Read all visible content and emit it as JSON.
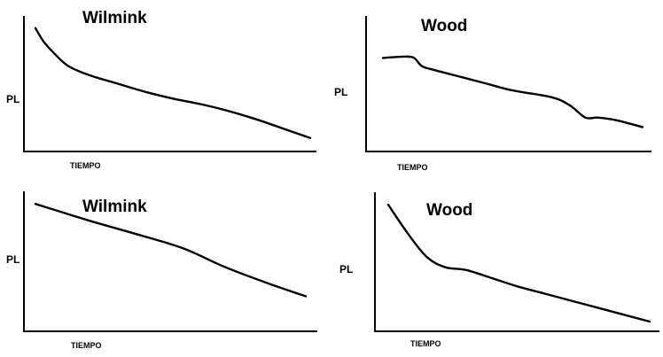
{
  "chart_data": [
    {
      "type": "line",
      "title": "Wilmink",
      "xlabel": "TIEMPO",
      "ylabel": "PL",
      "xlim": [
        0,
        10
      ],
      "ylim": [
        0,
        10
      ],
      "grid": false,
      "series": [
        {
          "x": [
            0,
            0.3,
            0.7,
            1.2,
            2,
            3,
            4,
            5,
            6,
            7,
            8,
            9,
            10
          ],
          "y": [
            9.1,
            8.1,
            7.2,
            6.3,
            5.6,
            5.0,
            4.4,
            3.9,
            3.5,
            3.0,
            2.4,
            1.7,
            1.0
          ]
        }
      ]
    },
    {
      "type": "line",
      "title": "Wood",
      "xlabel": "TIEMPO",
      "ylabel": "PL",
      "xlim": [
        0,
        10
      ],
      "ylim": [
        0,
        10
      ],
      "grid": false,
      "series": [
        {
          "x": [
            0,
            0.8,
            1.2,
            1.5,
            2,
            3,
            4,
            5,
            6.5,
            7.2,
            7.8,
            8.3,
            9,
            10
          ],
          "y": [
            6.9,
            7.0,
            6.9,
            6.3,
            6.0,
            5.5,
            5.0,
            4.5,
            4.0,
            3.4,
            2.5,
            2.5,
            2.3,
            1.8
          ]
        }
      ]
    },
    {
      "type": "line",
      "title": "Wilmink",
      "xlabel": "TIEMPO",
      "ylabel": "PL",
      "xlim": [
        0,
        10
      ],
      "ylim": [
        0,
        10
      ],
      "grid": false,
      "series": [
        {
          "x": [
            0,
            2,
            4,
            5.5,
            7,
            8.5,
            10
          ],
          "y": [
            9.1,
            7.9,
            6.8,
            5.9,
            4.6,
            3.5,
            2.5
          ]
        }
      ]
    },
    {
      "type": "line",
      "title": "Wood",
      "xlabel": "TIEMPO",
      "ylabel": "PL",
      "xlim": [
        0,
        10
      ],
      "ylim": [
        0,
        10
      ],
      "grid": false,
      "series": [
        {
          "x": [
            0,
            0.8,
            1.5,
            2.2,
            3,
            4,
            5,
            6,
            7,
            8,
            9,
            10
          ],
          "y": [
            9.1,
            6.9,
            5.3,
            4.6,
            4.4,
            3.8,
            3.2,
            2.7,
            2.2,
            1.7,
            1.2,
            0.7
          ]
        }
      ]
    }
  ]
}
